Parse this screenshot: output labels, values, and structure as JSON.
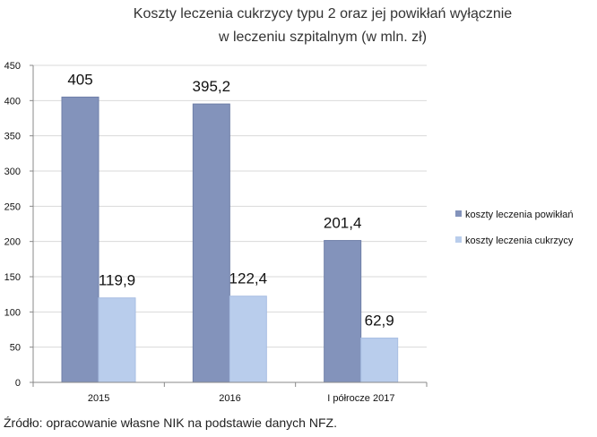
{
  "chart_data": {
    "type": "bar",
    "title_lines": [
      "Koszty leczenia cukrzycy typu 2 oraz jej powikłań wyłącznie",
      "w leczeniu  szpitalnym (w mln. zł)"
    ],
    "categories": [
      "2015",
      "2016",
      "I półrocze 2017"
    ],
    "series": [
      {
        "name": "koszty leczenia powikłań",
        "values": [
          405,
          395.2,
          201.4
        ],
        "labels": [
          "405",
          "395,2",
          "201,4"
        ],
        "color": "#8393bb"
      },
      {
        "name": "koszty leczenia cukrzycy",
        "values": [
          119.9,
          122.4,
          62.9
        ],
        "labels": [
          "119,9",
          "122,4",
          "62,9"
        ],
        "color": "#b9cdec"
      }
    ],
    "ylim": [
      0,
      450
    ],
    "yticks": [
      "0",
      "50",
      "100",
      "150",
      "200",
      "250",
      "300",
      "350",
      "400",
      "450"
    ],
    "grid": true,
    "legend_position": "right"
  },
  "source": "Źródło: opracowanie własne NIK na podstawie danych NFZ.",
  "colors": {
    "axis": "#888888",
    "grid": "#d9d9d9"
  }
}
